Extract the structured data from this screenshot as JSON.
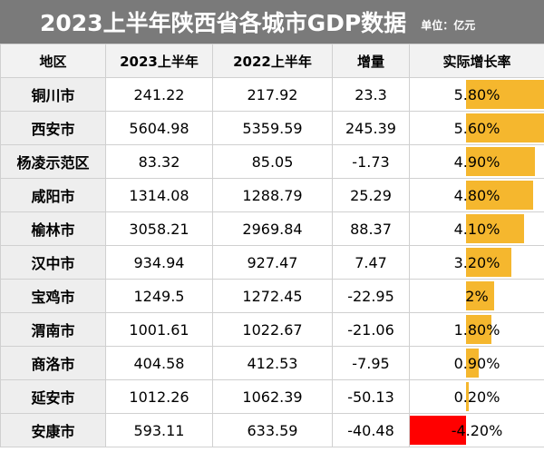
{
  "header": {
    "title": "2023上半年陕西省各城市GDP数据",
    "unit": "单位：亿元"
  },
  "columns": [
    "地区",
    "2023上半年",
    "2022上半年",
    "增量",
    "实际增长率"
  ],
  "colors": {
    "title_bg": "#7a7a7a",
    "positive_bar": "#f5b72e",
    "negative_bar": "#ff0000"
  },
  "rows": [
    {
      "region": "铜川市",
      "h2023": "241.22",
      "h2022": "217.92",
      "delta": "23.3",
      "rate": "5.80%",
      "rate_value": 5.8
    },
    {
      "region": "西安市",
      "h2023": "5604.98",
      "h2022": "5359.59",
      "delta": "245.39",
      "rate": "5.60%",
      "rate_value": 5.6
    },
    {
      "region": "杨凌示范区",
      "h2023": "83.32",
      "h2022": "85.05",
      "delta": "-1.73",
      "rate": "4.90%",
      "rate_value": 4.9
    },
    {
      "region": "咸阳市",
      "h2023": "1314.08",
      "h2022": "1288.79",
      "delta": "25.29",
      "rate": "4.80%",
      "rate_value": 4.8
    },
    {
      "region": "榆林市",
      "h2023": "3058.21",
      "h2022": "2969.84",
      "delta": "88.37",
      "rate": "4.10%",
      "rate_value": 4.1
    },
    {
      "region": "汉中市",
      "h2023": "934.94",
      "h2022": "927.47",
      "delta": "7.47",
      "rate": "3.20%",
      "rate_value": 3.2
    },
    {
      "region": "宝鸡市",
      "h2023": "1249.5",
      "h2022": "1272.45",
      "delta": "-22.95",
      "rate": "2%",
      "rate_value": 2.0
    },
    {
      "region": "渭南市",
      "h2023": "1001.61",
      "h2022": "1022.67",
      "delta": "-21.06",
      "rate": "1.80%",
      "rate_value": 1.8
    },
    {
      "region": "商洛市",
      "h2023": "404.58",
      "h2022": "412.53",
      "delta": "-7.95",
      "rate": "0.90%",
      "rate_value": 0.9
    },
    {
      "region": "延安市",
      "h2023": "1012.26",
      "h2022": "1062.39",
      "delta": "-50.13",
      "rate": "0.20%",
      "rate_value": 0.2
    },
    {
      "region": "安康市",
      "h2023": "593.11",
      "h2022": "633.59",
      "delta": "-40.48",
      "rate": "-4.20%",
      "rate_value": -4.2
    }
  ]
}
